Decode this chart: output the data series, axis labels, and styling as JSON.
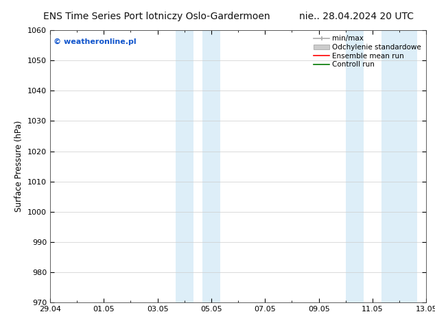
{
  "title_left": "ENS Time Series Port lotniczy Oslo-Gardermoen",
  "title_right": "nie.. 28.04.2024 20 UTC",
  "ylabel": "Surface Pressure (hPa)",
  "ylim": [
    970,
    1060
  ],
  "yticks": [
    970,
    980,
    990,
    1000,
    1010,
    1020,
    1030,
    1040,
    1050,
    1060
  ],
  "xlim_start": 0.0,
  "xlim_end": 14.0,
  "xtick_labels": [
    "29.04",
    "01.05",
    "03.05",
    "05.05",
    "07.05",
    "09.05",
    "11.05",
    "13.05"
  ],
  "xtick_positions": [
    0.0,
    2.0,
    4.0,
    6.0,
    8.0,
    10.0,
    12.0,
    14.0
  ],
  "shaded_bands": [
    {
      "x_start": 4.67,
      "x_end": 5.33
    },
    {
      "x_start": 5.67,
      "x_end": 6.33
    },
    {
      "x_start": 11.0,
      "x_end": 11.67
    },
    {
      "x_start": 12.33,
      "x_end": 13.67
    }
  ],
  "shaded_color": "#ddeef8",
  "watermark_text": "© weatheronline.pl",
  "watermark_color": "#1155cc",
  "legend_labels": [
    "min/max",
    "Odchylenie standardowe",
    "Ensemble mean run",
    "Controll run"
  ],
  "legend_colors": [
    "#aaaaaa",
    "#cccccc",
    "#ff0000",
    "#007700"
  ],
  "bg_color": "#ffffff",
  "plot_bg_color": "#ffffff",
  "grid_color": "#cccccc",
  "title_fontsize": 10,
  "tick_fontsize": 8,
  "label_fontsize": 8.5,
  "watermark_fontsize": 8,
  "legend_fontsize": 7.5
}
